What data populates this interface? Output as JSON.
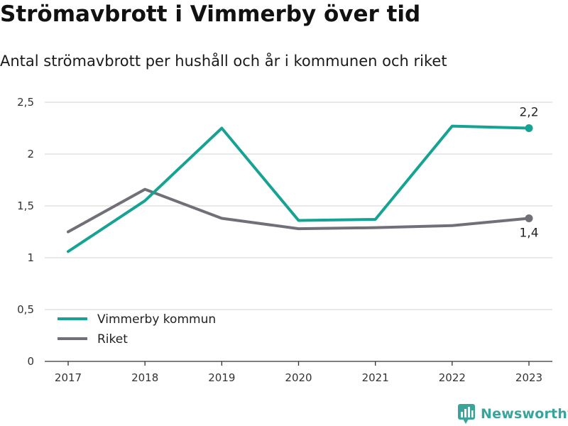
{
  "title": "Strömavbrott i Vimmerby över tid",
  "subtitle": "Antal strömavbrott per hushåll och år i kommunen och riket",
  "brand": "Newsworthy",
  "chart_data": {
    "type": "line",
    "title": "Strömavbrott i Vimmerby över tid",
    "subtitle": "Antal strömavbrott per hushåll och år i kommunen och riket",
    "x": [
      "2017",
      "2018",
      "2019",
      "2020",
      "2021",
      "2022",
      "2023"
    ],
    "ylim": [
      0,
      2.5
    ],
    "yticks": [
      0,
      0.5,
      1,
      1.5,
      2,
      2.5
    ],
    "ytick_labels": [
      "0",
      "0,5",
      "1",
      "1,5",
      "2",
      "2,5"
    ],
    "grid": "horizontal",
    "legend_position": "bottom-left",
    "series": [
      {
        "name": "Vimmerby kommun",
        "color": "#16a394",
        "values": [
          1.06,
          1.55,
          2.25,
          1.36,
          1.37,
          2.27,
          2.25
        ],
        "end_label": "2,2"
      },
      {
        "name": "Riket",
        "color": "#707078",
        "values": [
          1.25,
          1.66,
          1.38,
          1.28,
          1.29,
          1.31,
          1.38
        ],
        "end_label": "1,4"
      }
    ]
  }
}
